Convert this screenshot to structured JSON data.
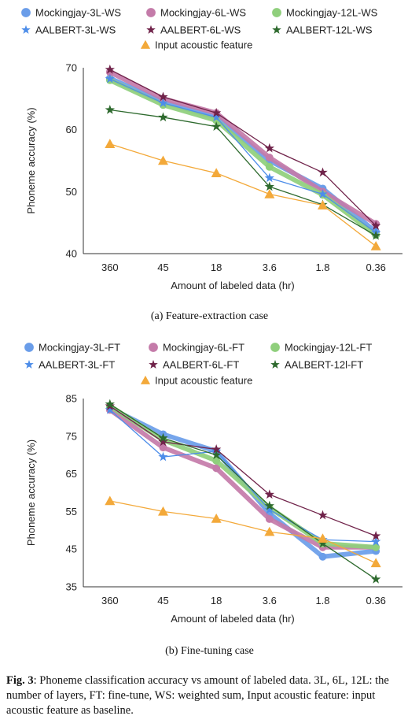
{
  "chart_data": [
    {
      "type": "line",
      "ylabel": "Phoneme accuracy (%)",
      "xlabel": "Amount of labeled data (hr)",
      "categories": [
        "360",
        "45",
        "18",
        "3.6",
        "1.8",
        "0.36"
      ],
      "ylim": [
        40,
        70
      ],
      "yticks": [
        "40",
        "50",
        "60",
        "70"
      ],
      "grid": false,
      "legend_position": "top",
      "series": [
        {
          "name": "Mockingjay-3L-WS",
          "marker": "circle",
          "color": "#6a9de9",
          "line": "thick",
          "values": [
            68.3,
            64.5,
            62.0,
            55.0,
            50.5,
            43.5
          ]
        },
        {
          "name": "Mockingjay-6L-WS",
          "marker": "circle",
          "color": "#c47ba9",
          "line": "thick",
          "values": [
            69.3,
            65.0,
            62.7,
            55.5,
            50.0,
            44.8
          ]
        },
        {
          "name": "Mockingjay-12L-WS",
          "marker": "circle",
          "color": "#8fcf7c",
          "line": "thick",
          "values": [
            68.0,
            64.0,
            61.5,
            54.0,
            49.5,
            43.0
          ]
        },
        {
          "name": "AALBERT-3L-WS",
          "marker": "star",
          "color": "#4d8de9",
          "line": "thin",
          "values": [
            68.2,
            64.3,
            62.0,
            52.2,
            49.6,
            43.4
          ]
        },
        {
          "name": "AALBERT-6L-WS",
          "marker": "star",
          "color": "#70234a",
          "line": "thin",
          "values": [
            69.7,
            65.3,
            62.7,
            57.0,
            53.1,
            44.5
          ]
        },
        {
          "name": "AALBERT-12L-WS",
          "marker": "star",
          "color": "#2e6a2e",
          "line": "thin",
          "values": [
            63.2,
            62.0,
            60.5,
            50.8,
            47.9,
            42.9
          ]
        },
        {
          "name": "Input acoustic feature",
          "marker": "triangle",
          "color": "#f3a93a",
          "line": "thin",
          "values": [
            57.7,
            55.0,
            53.0,
            49.6,
            47.8,
            41.2
          ]
        }
      ]
    },
    {
      "type": "line",
      "ylabel": "Phoneme accuracy (%)",
      "xlabel": "Amount of labeled data (hr)",
      "categories": [
        "360",
        "45",
        "18",
        "3.6",
        "1.8",
        "0.36"
      ],
      "ylim": [
        35,
        85
      ],
      "yticks": [
        "35",
        "45",
        "55",
        "65",
        "75",
        "85"
      ],
      "grid": false,
      "legend_position": "top",
      "series": [
        {
          "name": "Mockingjay-3L-FT",
          "marker": "circle",
          "color": "#6a9de9",
          "line": "thick",
          "values": [
            82.5,
            75.5,
            71.0,
            54.5,
            43.0,
            44.5
          ]
        },
        {
          "name": "Mockingjay-6L-FT",
          "marker": "circle",
          "color": "#c47ba9",
          "line": "thick",
          "values": [
            82.0,
            72.0,
            66.5,
            53.0,
            45.5,
            45.5
          ]
        },
        {
          "name": "Mockingjay-12L-FT",
          "marker": "circle",
          "color": "#8fcf7c",
          "line": "thick",
          "values": [
            83.0,
            74.0,
            68.5,
            56.0,
            46.5,
            45.5
          ]
        },
        {
          "name": "AALBERT-3L-FT",
          "marker": "star",
          "color": "#4d8de9",
          "line": "thin",
          "values": [
            82.0,
            69.5,
            71.0,
            55.5,
            47.5,
            47.0
          ]
        },
        {
          "name": "AALBERT-6L-FT",
          "marker": "star",
          "color": "#70234a",
          "line": "thin",
          "values": [
            83.0,
            73.5,
            71.5,
            59.5,
            54.0,
            48.5
          ]
        },
        {
          "name": "AALBERT-12l-FT",
          "marker": "star",
          "color": "#2e6a2e",
          "line": "thin",
          "values": [
            83.5,
            74.5,
            70.0,
            56.5,
            46.5,
            37.0
          ]
        },
        {
          "name": "Input acoustic feature",
          "marker": "triangle",
          "color": "#f3a93a",
          "line": "thin",
          "values": [
            57.8,
            55.0,
            53.1,
            49.6,
            47.8,
            41.3
          ]
        }
      ]
    }
  ],
  "captions": {
    "a": "(a) Feature-extraction case",
    "b": "(b) Fine-tuning case"
  },
  "figure_caption": {
    "label": "Fig. 3",
    "text": ": Phoneme classification accuracy vs amount of labeled data. 3L, 6L, 12L: the number of layers, FT: fine-tune, WS: weighted sum, Input acoustic feature: input acoustic feature as baseline."
  }
}
